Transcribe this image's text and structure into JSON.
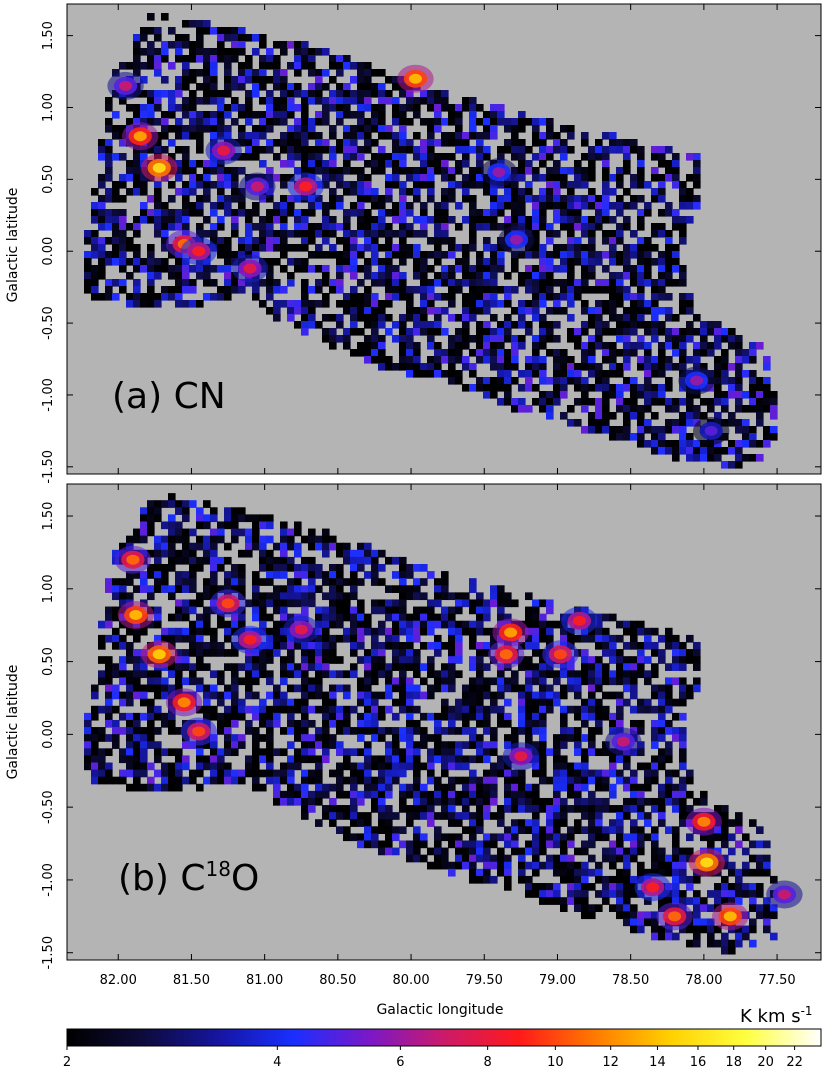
{
  "chart_data": {
    "type": "heatmap",
    "xlabel": "Galactic longitude",
    "ylabel": "Galactic latitude",
    "xlim": [
      82.35,
      77.2
    ],
    "ylim": [
      -1.55,
      1.72
    ],
    "x_ticks": [
      {
        "v": 82.0,
        "t": "82.00"
      },
      {
        "v": 81.5,
        "t": "81.50"
      },
      {
        "v": 81.0,
        "t": "81.00"
      },
      {
        "v": 80.5,
        "t": "80.50"
      },
      {
        "v": 80.0,
        "t": "80.00"
      },
      {
        "v": 79.5,
        "t": "79.50"
      },
      {
        "v": 79.0,
        "t": "79.00"
      },
      {
        "v": 78.5,
        "t": "78.50"
      },
      {
        "v": 78.0,
        "t": "78.00"
      },
      {
        "v": 77.5,
        "t": "77.50"
      }
    ],
    "y_ticks": [
      {
        "v": 1.5,
        "t": "1.50"
      },
      {
        "v": 1.0,
        "t": "1.00"
      },
      {
        "v": 0.5,
        "t": "0.50"
      },
      {
        "v": 0.0,
        "t": "0.00"
      },
      {
        "v": -0.5,
        "t": "-0.50"
      },
      {
        "v": -1.0,
        "t": "-1.00"
      },
      {
        "v": -1.5,
        "t": "-1.50"
      }
    ],
    "panels": [
      {
        "label": "(a) CN",
        "label_main": "(a) CN",
        "label_sup": "",
        "label_tail": "",
        "hotspots": [
          {
            "l": 81.72,
            "b": 0.58,
            "k": 16
          },
          {
            "l": 81.85,
            "b": 0.8,
            "k": 13
          },
          {
            "l": 81.55,
            "b": 0.05,
            "k": 11
          },
          {
            "l": 81.45,
            "b": 0.0,
            "k": 9
          },
          {
            "l": 79.97,
            "b": 1.2,
            "k": 14
          },
          {
            "l": 80.72,
            "b": 0.45,
            "k": 9
          },
          {
            "l": 81.28,
            "b": 0.7,
            "k": 8
          },
          {
            "l": 81.05,
            "b": 0.45,
            "k": 7
          },
          {
            "l": 81.1,
            "b": -0.12,
            "k": 8
          },
          {
            "l": 79.28,
            "b": 0.08,
            "k": 6
          },
          {
            "l": 79.4,
            "b": 0.55,
            "k": 6
          },
          {
            "l": 78.05,
            "b": -0.9,
            "k": 6
          },
          {
            "l": 77.95,
            "b": -1.25,
            "k": 5
          },
          {
            "l": 81.95,
            "b": 1.15,
            "k": 7
          }
        ]
      },
      {
        "label": "(b) C18O",
        "label_main": "(b) C",
        "label_sup": "18",
        "label_tail": "O",
        "hotspots": [
          {
            "l": 81.72,
            "b": 0.55,
            "k": 15
          },
          {
            "l": 81.88,
            "b": 0.82,
            "k": 14
          },
          {
            "l": 81.9,
            "b": 1.2,
            "k": 11
          },
          {
            "l": 81.55,
            "b": 0.22,
            "k": 12
          },
          {
            "l": 81.45,
            "b": 0.02,
            "k": 10
          },
          {
            "l": 81.25,
            "b": 0.9,
            "k": 10
          },
          {
            "l": 81.1,
            "b": 0.65,
            "k": 9
          },
          {
            "l": 80.75,
            "b": 0.72,
            "k": 8
          },
          {
            "l": 79.32,
            "b": 0.7,
            "k": 13
          },
          {
            "l": 79.35,
            "b": 0.55,
            "k": 11
          },
          {
            "l": 78.98,
            "b": 0.55,
            "k": 10
          },
          {
            "l": 78.85,
            "b": 0.78,
            "k": 9
          },
          {
            "l": 79.25,
            "b": -0.15,
            "k": 8
          },
          {
            "l": 78.55,
            "b": -0.05,
            "k": 7
          },
          {
            "l": 78.0,
            "b": -0.6,
            "k": 12
          },
          {
            "l": 77.98,
            "b": -0.88,
            "k": 16
          },
          {
            "l": 77.82,
            "b": -1.25,
            "k": 14
          },
          {
            "l": 78.2,
            "b": -1.25,
            "k": 11
          },
          {
            "l": 78.35,
            "b": -1.05,
            "k": 9
          },
          {
            "l": 77.45,
            "b": -1.1,
            "k": 7
          }
        ]
      }
    ],
    "colorbar": {
      "unit_main": "K km s",
      "unit_sup": "-1",
      "min": 2,
      "max": 24,
      "scale": "log",
      "ticks": [
        {
          "v": 2,
          "t": "2"
        },
        {
          "v": 4,
          "t": "4"
        },
        {
          "v": 6,
          "t": "6"
        },
        {
          "v": 8,
          "t": "8"
        },
        {
          "v": 10,
          "t": "10"
        },
        {
          "v": 12,
          "t": "12"
        },
        {
          "v": 14,
          "t": "14"
        },
        {
          "v": 16,
          "t": "16"
        },
        {
          "v": 18,
          "t": "18"
        },
        {
          "v": 20,
          "t": "20"
        },
        {
          "v": 22,
          "t": "22"
        }
      ],
      "colors": [
        "#000000",
        "#0d0b3a",
        "#1515a0",
        "#1a2fff",
        "#7a18c8",
        "#cc1a6a",
        "#ff1a1a",
        "#ff7a00",
        "#ffd000",
        "#ffff40",
        "#ffffff"
      ]
    },
    "colors": {
      "background": "#b4b4b4",
      "frame": "#000000"
    }
  }
}
